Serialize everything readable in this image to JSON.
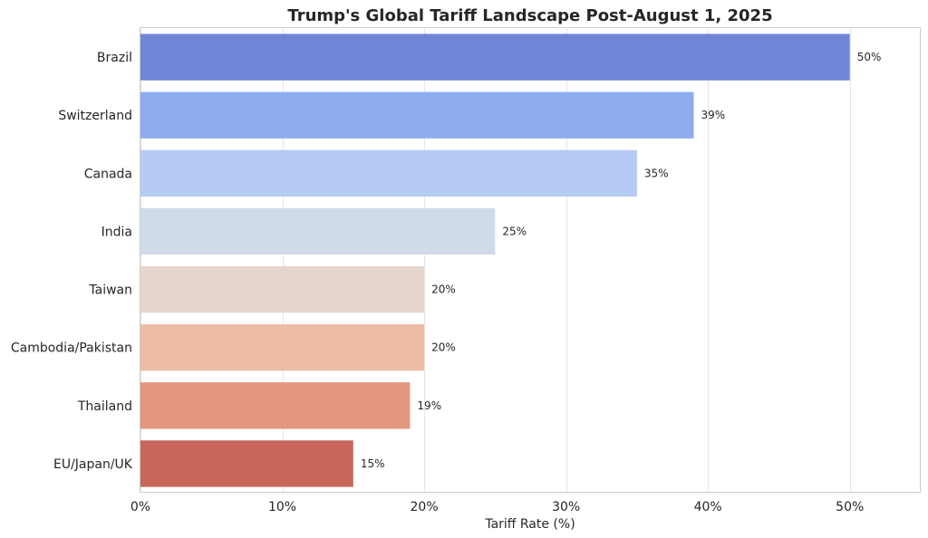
{
  "chart_data": {
    "type": "bar",
    "orientation": "horizontal",
    "title": "Trump's Global Tariff Landscape Post-August 1, 2025",
    "xlabel": "Tariff Rate (%)",
    "ylabel": "",
    "xlim": [
      0,
      55
    ],
    "xticks": [
      0,
      10,
      20,
      30,
      40,
      50
    ],
    "xtick_labels": [
      "0%",
      "10%",
      "20%",
      "30%",
      "40%",
      "50%"
    ],
    "grid": true,
    "categories": [
      "Brazil",
      "Switzerland",
      "Canada",
      "India",
      "Taiwan",
      "Cambodia/Pakistan",
      "Thailand",
      "EU/Japan/UK"
    ],
    "values": [
      50,
      39,
      35,
      25,
      20,
      20,
      19,
      15
    ],
    "value_labels": [
      "50%",
      "39%",
      "35%",
      "25%",
      "20%",
      "20%",
      "19%",
      "15%"
    ],
    "colors": [
      "#6e86d6",
      "#8fadee",
      "#b6cbf3",
      "#d0dae8",
      "#e6d5cc",
      "#ecbca4",
      "#e2967e",
      "#c8665b"
    ]
  }
}
